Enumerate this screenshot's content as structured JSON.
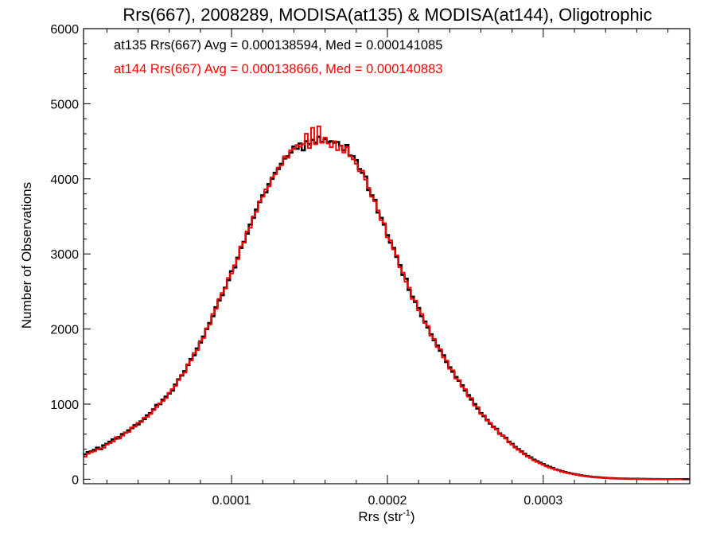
{
  "chart_data": {
    "type": "histogram-step",
    "title": "Rrs(667), 2008289, MODISA(at135) & MODISA(at144), Oligotrophic",
    "xlabel_main": "Rrs (str",
    "xlabel_sup": "-1",
    "xlabel_close": ")",
    "ylabel": "Number of Observations",
    "xlim": [
      5e-06,
      0.000394
    ],
    "ylim": [
      -60,
      6000
    ],
    "x_ticks": [
      {
        "value": 0.0001,
        "label": "0.0001"
      },
      {
        "value": 0.0002,
        "label": "0.0002"
      },
      {
        "value": 0.0003,
        "label": "0.0003"
      }
    ],
    "y_ticks": [
      {
        "value": 0,
        "label": "0"
      },
      {
        "value": 1000,
        "label": "1000"
      },
      {
        "value": 2000,
        "label": "2000"
      },
      {
        "value": 3000,
        "label": "3000"
      },
      {
        "value": 4000,
        "label": "4000"
      },
      {
        "value": 5000,
        "label": "5000"
      },
      {
        "value": 6000,
        "label": "6000"
      }
    ],
    "annotations": [
      {
        "text": "at135 Rrs(667) Avg = 0.000138594, Med = 0.000141085",
        "color": "#000000"
      },
      {
        "text": "at144 Rrs(667) Avg = 0.000138666, Med = 0.000140883",
        "color": "#ff0000"
      }
    ],
    "bin_width": 2e-06,
    "series": [
      {
        "color": "#000000",
        "x_start": 5e-06,
        "values": [
          330,
          360,
          370,
          390,
          420,
          400,
          450,
          470,
          500,
          530,
          540,
          560,
          600,
          620,
          650,
          680,
          720,
          730,
          770,
          800,
          850,
          880,
          930,
          990,
          1000,
          1060,
          1100,
          1140,
          1180,
          1260,
          1330,
          1380,
          1440,
          1520,
          1600,
          1650,
          1740,
          1820,
          1900,
          2000,
          2080,
          2170,
          2290,
          2380,
          2450,
          2550,
          2650,
          2770,
          2820,
          2950,
          3080,
          3160,
          3270,
          3390,
          3480,
          3590,
          3690,
          3780,
          3820,
          3930,
          4000,
          4080,
          4130,
          4200,
          4270,
          4300,
          4350,
          4430,
          4400,
          4470,
          4380,
          4500,
          4460,
          4520,
          4480,
          4560,
          4490,
          4530,
          4490,
          4500,
          4480,
          4490,
          4440,
          4380,
          4450,
          4310,
          4300,
          4250,
          4130,
          4080,
          4030,
          3850,
          3780,
          3720,
          3550,
          3480,
          3390,
          3250,
          3150,
          3080,
          2960,
          2850,
          2720,
          2670,
          2520,
          2430,
          2360,
          2280,
          2170,
          2100,
          2020,
          1930,
          1850,
          1780,
          1710,
          1650,
          1560,
          1490,
          1430,
          1360,
          1310,
          1250,
          1180,
          1120,
          1060,
          1000,
          940,
          880,
          840,
          790,
          740,
          700,
          670,
          610,
          580,
          550,
          500,
          470,
          430,
          400,
          370,
          340,
          310,
          290,
          260,
          240,
          220,
          200,
          180,
          165,
          150,
          130,
          120,
          105,
          95,
          85,
          75,
          68,
          60,
          52,
          45,
          40,
          35,
          30,
          27,
          24,
          20,
          18,
          15,
          13,
          11,
          10,
          9,
          8,
          7,
          6,
          5,
          5,
          4,
          4,
          3,
          3,
          2,
          2,
          2,
          1,
          1,
          1,
          1,
          1,
          1,
          1,
          0,
          0,
          0,
          0,
          0,
          0,
          0,
          0
        ]
      },
      {
        "color": "#ff0000",
        "x_start": 5e-06,
        "values": [
          300,
          340,
          360,
          370,
          400,
          410,
          420,
          460,
          480,
          500,
          560,
          540,
          580,
          620,
          630,
          690,
          700,
          750,
          760,
          820,
          830,
          870,
          920,
          960,
          1010,
          1040,
          1080,
          1150,
          1200,
          1240,
          1320,
          1390,
          1420,
          1530,
          1580,
          1680,
          1720,
          1840,
          1880,
          2010,
          2060,
          2200,
          2270,
          2400,
          2480,
          2540,
          2680,
          2740,
          2850,
          2930,
          3100,
          3150,
          3300,
          3350,
          3500,
          3560,
          3700,
          3760,
          3860,
          3900,
          4020,
          4060,
          4150,
          4180,
          4300,
          4280,
          4380,
          4400,
          4450,
          4430,
          4460,
          4600,
          4410,
          4680,
          4460,
          4700,
          4480,
          4550,
          4470,
          4420,
          4500,
          4380,
          4440,
          4350,
          4420,
          4300,
          4260,
          4200,
          4100,
          4110,
          3990,
          3880,
          3760,
          3700,
          3580,
          3450,
          3410,
          3220,
          3180,
          3060,
          2980,
          2820,
          2750,
          2630,
          2550,
          2400,
          2380,
          2250,
          2200,
          2080,
          2040,
          1910,
          1870,
          1760,
          1730,
          1620,
          1580,
          1470,
          1450,
          1340,
          1320,
          1230,
          1200,
          1100,
          1080,
          980,
          960,
          870,
          850,
          780,
          750,
          690,
          660,
          600,
          580,
          540,
          490,
          460,
          420,
          390,
          360,
          330,
          300,
          280,
          250,
          230,
          210,
          190,
          170,
          155,
          140,
          125,
          115,
          100,
          90,
          80,
          72,
          64,
          57,
          50,
          43,
          38,
          33,
          29,
          25,
          22,
          19,
          16,
          14,
          12,
          10,
          9,
          8,
          7,
          6,
          5,
          4,
          4,
          3,
          3,
          2,
          2,
          2,
          1,
          1,
          1,
          1,
          1,
          1,
          1,
          1,
          0,
          0,
          0,
          0,
          0,
          0,
          0,
          0
        ]
      }
    ]
  }
}
